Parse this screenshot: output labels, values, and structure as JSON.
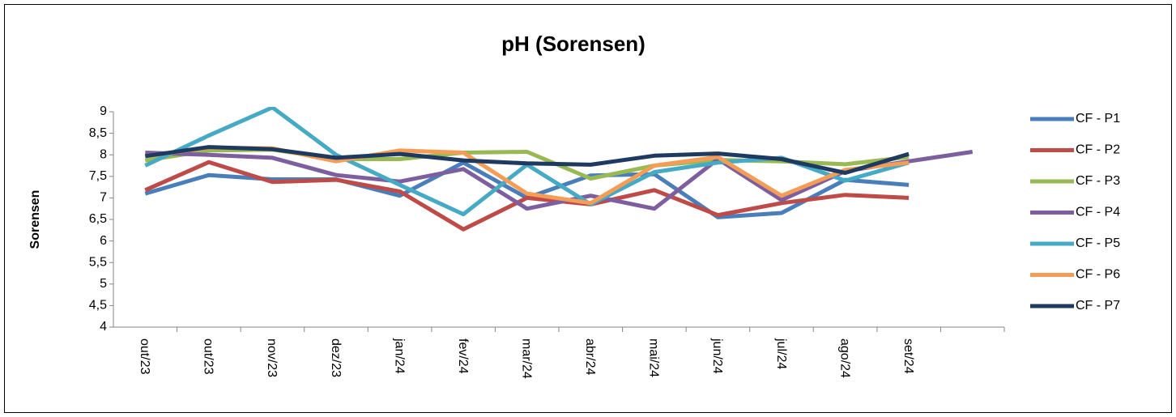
{
  "chart_data": {
    "type": "line",
    "title": "pH (Sorensen)",
    "y_label": "Sorensen",
    "categories": [
      "out/23",
      "out/23",
      "nov/23",
      "dez/23",
      "jan/24",
      "fev/24",
      "mar/24",
      "abr/24",
      "mai/24",
      "jun/24",
      "jul/24",
      "ago/24",
      "set/24",
      null
    ],
    "ylim": [
      4,
      9
    ],
    "yticks": [
      4,
      {
        "value": 4.5,
        "label": "4,5"
      },
      5,
      {
        "value": 5.5,
        "label": "5,5"
      },
      6,
      {
        "value": 6.5,
        "label": "6,5"
      },
      7,
      {
        "value": 7.5,
        "label": "7,5"
      },
      8,
      {
        "value": 8.5,
        "label": "8,5"
      },
      9
    ],
    "grid": false,
    "legend": "right",
    "series": [
      {
        "name": "CF - P1",
        "color": "#4a7ebb",
        "values": [
          7.1,
          7.53,
          7.43,
          7.43,
          7.05,
          7.82,
          7.0,
          7.52,
          7.55,
          6.55,
          6.65,
          7.42,
          7.3,
          null
        ]
      },
      {
        "name": "CF - P2",
        "color": "#be4b48",
        "values": [
          7.18,
          7.83,
          7.37,
          7.42,
          7.15,
          6.27,
          7.0,
          6.85,
          7.18,
          6.6,
          6.88,
          7.07,
          7.0,
          null
        ]
      },
      {
        "name": "CF - P3",
        "color": "#98b954",
        "values": [
          7.87,
          8.1,
          8.12,
          7.9,
          7.9,
          8.05,
          8.07,
          7.45,
          7.75,
          7.88,
          7.85,
          7.78,
          7.95,
          null
        ]
      },
      {
        "name": "CF - P4",
        "color": "#7d5fa0",
        "values": [
          8.05,
          8.0,
          7.93,
          7.53,
          7.38,
          7.67,
          6.75,
          7.05,
          6.75,
          7.9,
          6.95,
          7.62,
          7.85,
          8.07
        ]
      },
      {
        "name": "CF - P5",
        "color": "#46aac5",
        "values": [
          7.75,
          8.45,
          9.1,
          8.0,
          7.3,
          6.62,
          7.77,
          6.85,
          7.6,
          7.82,
          7.93,
          7.4,
          7.82,
          null
        ]
      },
      {
        "name": "CF - P6",
        "color": "#f59d56",
        "values": [
          7.97,
          8.17,
          8.15,
          7.85,
          8.1,
          8.05,
          7.1,
          6.88,
          7.75,
          7.95,
          7.05,
          7.65,
          7.82,
          null
        ]
      },
      {
        "name": "CF - P7",
        "color": "#1f3a60",
        "values": [
          7.97,
          8.18,
          8.13,
          7.93,
          8.02,
          7.87,
          7.8,
          7.77,
          7.98,
          8.03,
          7.9,
          7.58,
          8.02,
          null
        ]
      }
    ]
  }
}
